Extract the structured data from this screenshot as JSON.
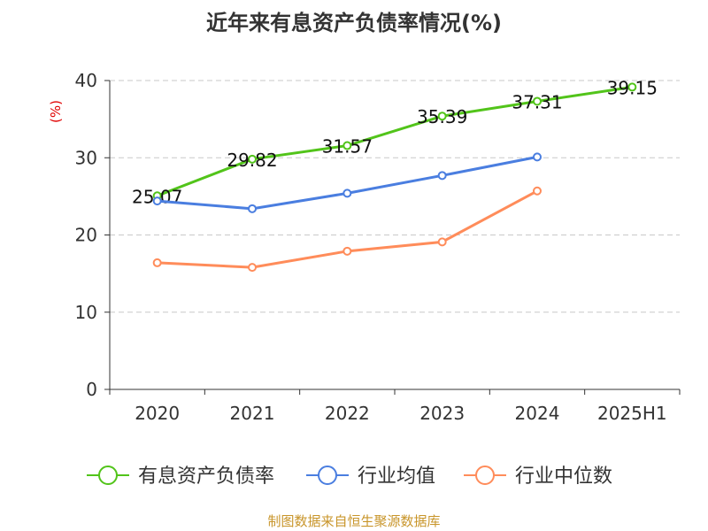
{
  "chart_data": {
    "type": "line",
    "title": "近年来有息资产负债率情况(%)",
    "ylabel": "(%)",
    "categories": [
      "2020",
      "2021",
      "2022",
      "2023",
      "2024",
      "2025H1"
    ],
    "ylim": [
      0,
      40
    ],
    "yticks": [
      0,
      10,
      20,
      30,
      40
    ],
    "grid": true,
    "legend_position": "bottom",
    "series": [
      {
        "name": "有息资产负债率",
        "color": "#52c41a",
        "values": [
          25.07,
          29.82,
          31.57,
          35.39,
          37.31,
          39.15
        ],
        "labels": [
          "25.07",
          "29.82",
          "31.57",
          "35.39",
          "37.31",
          "39.15"
        ]
      },
      {
        "name": "行业均值",
        "color": "#4a7ee0",
        "values": [
          24.4,
          23.4,
          25.4,
          27.7,
          30.1,
          null
        ]
      },
      {
        "name": "行业中位数",
        "color": "#ff8c5a",
        "values": [
          16.4,
          15.8,
          17.9,
          19.1,
          25.7,
          null
        ]
      }
    ],
    "source": "制图数据来自恒生聚源数据库"
  }
}
